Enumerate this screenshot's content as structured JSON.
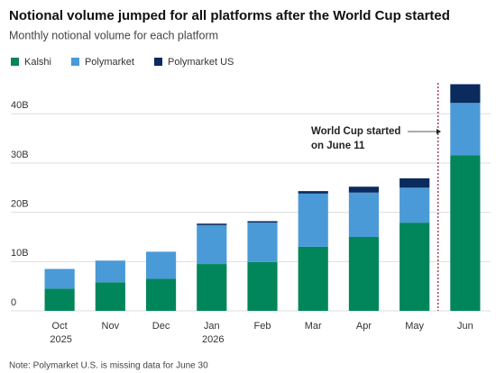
{
  "chart_data": {
    "type": "stacked_bar",
    "title": "Notional volume jumped for all platforms after the World Cup started",
    "subtitle": "Monthly notional volume for each platform",
    "categories": [
      "Oct 2025",
      "Nov",
      "Dec",
      "Jan 2026",
      "Feb",
      "Mar",
      "Apr",
      "May",
      "Jun"
    ],
    "series": [
      {
        "name": "Kalshi",
        "color": "#00865a",
        "values": [
          4.5,
          5.8,
          6.5,
          9.5,
          9.9,
          13.0,
          15.0,
          17.9,
          31.6
        ]
      },
      {
        "name": "Polymarket",
        "color": "#4a9ad8",
        "values": [
          4.0,
          4.4,
          5.5,
          7.9,
          8.0,
          10.8,
          9.0,
          7.1,
          10.6
        ]
      },
      {
        "name": "Polymarket US",
        "color": "#0b2a5e",
        "values": [
          0,
          0,
          0,
          0.3,
          0.3,
          0.5,
          1.2,
          1.9,
          3.8
        ]
      }
    ],
    "ylim": [
      0,
      47
    ],
    "yticks": [
      0,
      {
        "value": 10,
        "label": "10B"
      },
      {
        "value": 20,
        "label": "20B"
      },
      {
        "value": 30,
        "label": "30B"
      },
      {
        "value": 40,
        "label": "40B"
      }
    ],
    "grid": true,
    "legend": "top-left",
    "annotation_lines": [
      "World Cup started",
      "on June 11"
    ],
    "note": "Note: Polymarket U.S. is missing data for June 30"
  }
}
